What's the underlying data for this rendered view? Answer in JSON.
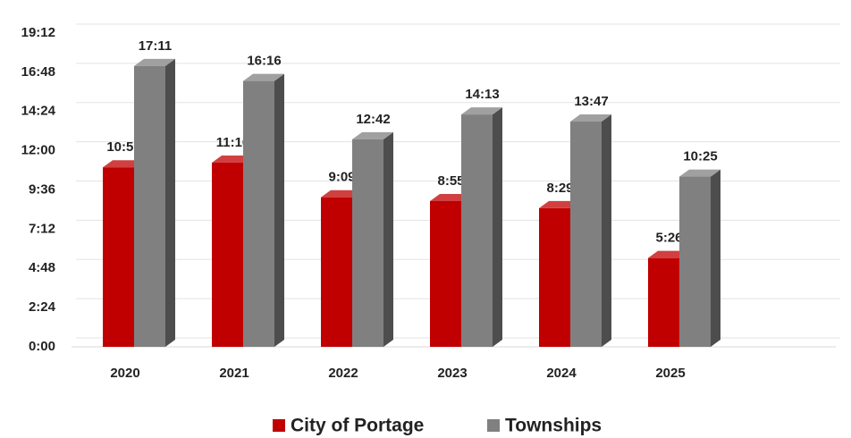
{
  "chart_data": {
    "type": "bar3d",
    "categories": [
      "2020",
      "2021",
      "2022",
      "2023",
      "2024",
      "2025"
    ],
    "series": [
      {
        "name": "City of Portage",
        "color": "#c00000",
        "values": [
          659,
          676,
          549,
          535,
          509,
          326
        ],
        "value_labels": [
          "10:59",
          "11:16",
          "9:09",
          "8:55",
          "8:29",
          "5:26"
        ]
      },
      {
        "name": "Townships",
        "color": "#808080",
        "values": [
          1031,
          976,
          762,
          853,
          827,
          625
        ],
        "value_labels": [
          "17:11",
          "16:16",
          "12:42",
          "14:13",
          "13:47",
          "10:25"
        ]
      }
    ],
    "ylim": [
      0,
      1152
    ],
    "yticks": [
      {
        "value": 0,
        "label": "0:00"
      },
      {
        "value": 144,
        "label": "2:24"
      },
      {
        "value": 288,
        "label": "4:48"
      },
      {
        "value": 432,
        "label": "7:12"
      },
      {
        "value": 576,
        "label": "9:36"
      },
      {
        "value": 720,
        "label": "12:00"
      },
      {
        "value": 864,
        "label": "14:24"
      },
      {
        "value": 1008,
        "label": "16:48"
      },
      {
        "value": 1152,
        "label": "19:12"
      }
    ],
    "grid": true,
    "legend": "bottom"
  }
}
